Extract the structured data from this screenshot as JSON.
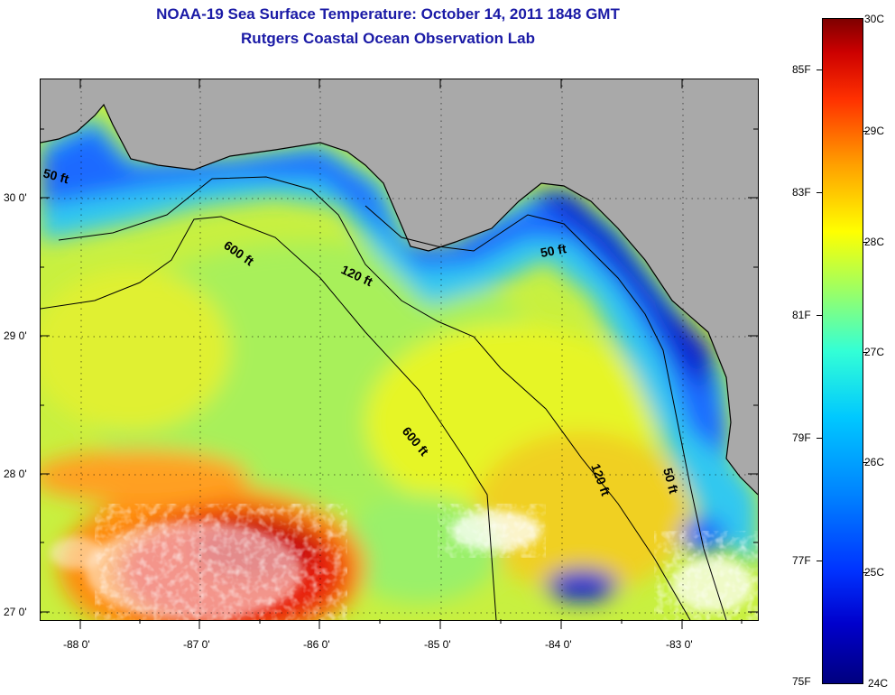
{
  "title": "NOAA-19 Sea Surface Temperature:  October 14, 2011 1848 GMT",
  "subtitle": "Rutgers Coastal Ocean Observation Lab",
  "map": {
    "lon_ticks": [
      "-88 0'",
      "-87 0'",
      "-86 0'",
      "-85 0'",
      "-84 0'",
      "-83 0'"
    ],
    "lat_ticks": [
      "30 0'",
      "29 0'",
      "28 0'",
      "27 0'"
    ],
    "contours": [
      {
        "label": "600 ft"
      },
      {
        "label": "600 ft"
      },
      {
        "label": "120 ft"
      },
      {
        "label": "120 ft"
      },
      {
        "label": "50 ft"
      },
      {
        "label": "50 ft"
      },
      {
        "label": "50 ft"
      }
    ],
    "colors": {
      "land": "#a9a9a9",
      "cloud": "#ffffff",
      "contour": "#000000"
    }
  },
  "colorbar": {
    "celsius": [
      "30C",
      "29C",
      "28C",
      "27C",
      "26C",
      "25C",
      "24C"
    ],
    "fahrenheit": [
      "85F",
      "83F",
      "81F",
      "79F",
      "77F",
      "75F"
    ],
    "min_c": 24,
    "max_c": 30
  }
}
